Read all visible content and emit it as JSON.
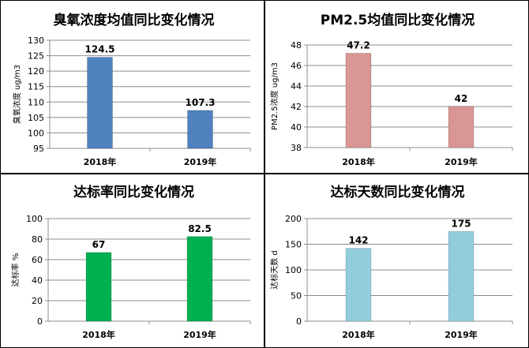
{
  "chart_data": [
    {
      "type": "bar",
      "title": "臭氧浓度均值同比变化情况",
      "ylabel": "臭氧浓度 ug/m3",
      "categories": [
        "2018年",
        "2019年"
      ],
      "values": [
        124.5,
        107.3
      ],
      "data_labels": [
        "124.5",
        "107.3"
      ],
      "ylim": [
        95,
        130
      ],
      "yticks": [
        95,
        100,
        105,
        110,
        115,
        120,
        125,
        130
      ],
      "color": "#4F81BD",
      "grid": true
    },
    {
      "type": "bar",
      "title": "PM2.5均值同比变化情况",
      "ylabel": "PM2.5浓度 ug/m3",
      "categories": [
        "2018年",
        "2019年"
      ],
      "values": [
        47.2,
        42
      ],
      "data_labels": [
        "47.2",
        "42"
      ],
      "ylim": [
        38,
        48
      ],
      "yticks": [
        38,
        40,
        42,
        44,
        46,
        48
      ],
      "color": "#D99694",
      "grid": true
    },
    {
      "type": "bar",
      "title": "达标率同比变化情况",
      "ylabel": "达标率 %",
      "categories": [
        "2018年",
        "2019年"
      ],
      "values": [
        67,
        82.5
      ],
      "data_labels": [
        "67",
        "82.5"
      ],
      "ylim": [
        0,
        100
      ],
      "yticks": [
        0,
        20,
        40,
        60,
        80,
        100
      ],
      "color": "#00B050",
      "grid": true
    },
    {
      "type": "bar",
      "title": "达标天数同比变化情况",
      "ylabel": "达标天数 d",
      "categories": [
        "2018年",
        "2019年"
      ],
      "values": [
        142,
        175
      ],
      "data_labels": [
        "142",
        "175"
      ],
      "ylim": [
        0,
        200
      ],
      "yticks": [
        0,
        50,
        100,
        150,
        200
      ],
      "color": "#92CDDC",
      "grid": true
    }
  ]
}
